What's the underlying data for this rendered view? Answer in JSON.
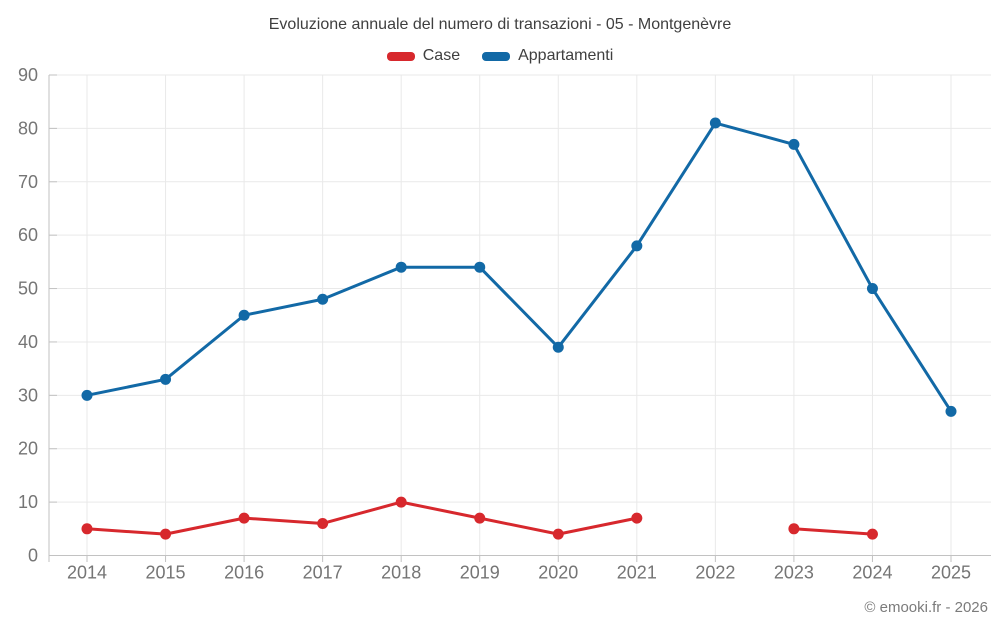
{
  "chart_data": {
    "type": "line",
    "title": "Evoluzione annuale del numero di transazioni - 05 - Montgenèvre",
    "categories": [
      "2014",
      "2015",
      "2016",
      "2017",
      "2018",
      "2019",
      "2020",
      "2021",
      "2022",
      "2023",
      "2024",
      "2025"
    ],
    "series": [
      {
        "name": "Case",
        "color": "#d7282d",
        "values": [
          5,
          4,
          7,
          6,
          10,
          7,
          4,
          7,
          null,
          5,
          4,
          null
        ]
      },
      {
        "name": "Appartamenti",
        "color": "#1269a6",
        "values": [
          30,
          33,
          45,
          48,
          54,
          54,
          39,
          58,
          81,
          77,
          50,
          27
        ]
      }
    ],
    "xlabel": "",
    "ylabel": "",
    "ylim": [
      0,
      90
    ],
    "ytick_step": 10,
    "grid": true,
    "legend_position": "top"
  },
  "footer": {
    "credit": "© emooki.fr - 2026"
  },
  "colors": {
    "case_red": "#d7282d",
    "appartamenti_blue": "#1269a6",
    "grid": "#e9e9e9",
    "axis": "#c2c2c2",
    "tick_label": "#757575",
    "title_text": "#3f3f3f",
    "credit_text": "#7b7b7b"
  }
}
